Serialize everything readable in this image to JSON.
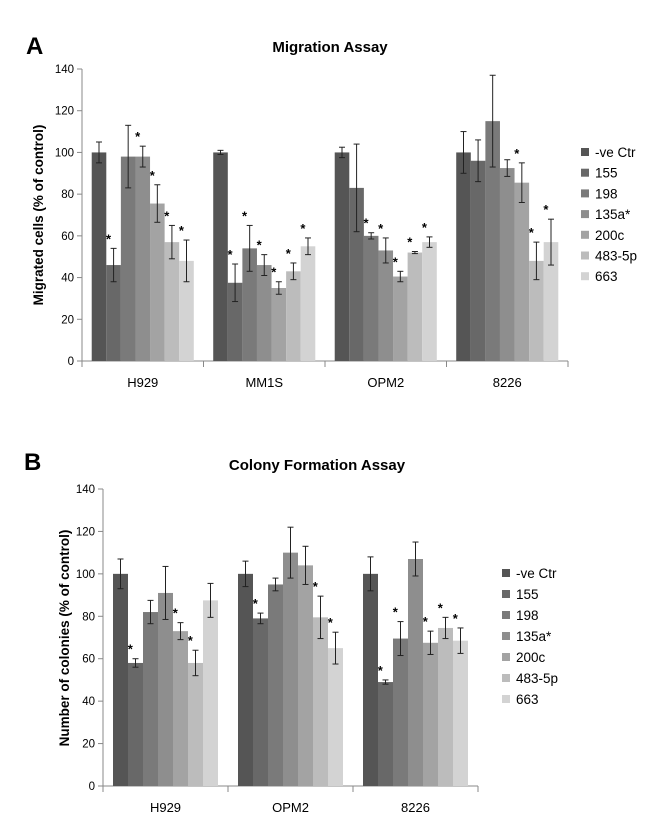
{
  "series_colors": [
    "#555555",
    "#686868",
    "#7a7a7a",
    "#8e8e8e",
    "#a3a3a3",
    "#bcbcbc",
    "#d3d3d3"
  ],
  "chart_data": [
    {
      "panel": "A",
      "type": "bar",
      "title": "Migration Assay",
      "xlabel": "",
      "ylabel": "Migrated cells (% of control)",
      "ylim": [
        0,
        140
      ],
      "yticks": [
        0,
        20,
        40,
        60,
        80,
        100,
        120,
        140
      ],
      "grid": false,
      "legend_position": "right",
      "categories": [
        "H929",
        "MM1S",
        "OPM2",
        "8226"
      ],
      "series": [
        {
          "name": "-ve Ctr",
          "values": [
            100,
            100,
            100,
            100
          ],
          "errors": [
            5,
            1,
            2.5,
            10
          ],
          "sig": [
            false,
            false,
            false,
            false
          ]
        },
        {
          "name": "155",
          "values": [
            46,
            37.5,
            83,
            96
          ],
          "errors": [
            8,
            9,
            21,
            10
          ],
          "sig": [
            true,
            true,
            false,
            false
          ]
        },
        {
          "name": "198",
          "values": [
            98,
            54,
            60,
            115
          ],
          "errors": [
            15,
            11,
            1.5,
            22
          ],
          "sig": [
            false,
            true,
            true,
            false
          ]
        },
        {
          "name": "135a*",
          "values": [
            98,
            46,
            53,
            92.5
          ],
          "errors": [
            5,
            5,
            6,
            4
          ],
          "sig": [
            true,
            true,
            true,
            false
          ]
        },
        {
          "name": "200c",
          "values": [
            75.5,
            35,
            40.5,
            85.5
          ],
          "errors": [
            9,
            3,
            2.5,
            9.5
          ],
          "sig": [
            true,
            true,
            true,
            true
          ]
        },
        {
          "name": "483-5p",
          "values": [
            57,
            43,
            52,
            48
          ],
          "errors": [
            8,
            4,
            0.5,
            9
          ],
          "sig": [
            true,
            true,
            true,
            true
          ]
        },
        {
          "name": "663",
          "values": [
            48,
            55,
            57,
            57
          ],
          "errors": [
            10,
            4,
            2.5,
            11
          ],
          "sig": [
            true,
            true,
            true,
            true
          ]
        }
      ]
    },
    {
      "panel": "B",
      "type": "bar",
      "title": "Colony Formation Assay",
      "xlabel": "",
      "ylabel": "Number of colonies (% of control)",
      "ylim": [
        0,
        140
      ],
      "yticks": [
        0,
        20,
        40,
        60,
        80,
        100,
        120,
        140
      ],
      "grid": false,
      "legend_position": "right",
      "categories": [
        "H929",
        "OPM2",
        "8226"
      ],
      "series": [
        {
          "name": "-ve Ctr",
          "values": [
            100,
            100,
            100
          ],
          "errors": [
            7,
            6,
            8
          ],
          "sig": [
            false,
            false,
            false
          ]
        },
        {
          "name": "155",
          "values": [
            58,
            79,
            49
          ],
          "errors": [
            2,
            2.5,
            1
          ],
          "sig": [
            true,
            true,
            true
          ]
        },
        {
          "name": "198",
          "values": [
            82,
            95,
            69.5
          ],
          "errors": [
            5.5,
            3,
            8
          ],
          "sig": [
            false,
            false,
            true
          ]
        },
        {
          "name": "135a*",
          "values": [
            91,
            110,
            107
          ],
          "errors": [
            12.5,
            12,
            8
          ],
          "sig": [
            false,
            false,
            false
          ]
        },
        {
          "name": "200c",
          "values": [
            73,
            104,
            67.5
          ],
          "errors": [
            4,
            9,
            5.5
          ],
          "sig": [
            true,
            false,
            true
          ]
        },
        {
          "name": "483-5p",
          "values": [
            58,
            79.5,
            74.5
          ],
          "errors": [
            6,
            10,
            5
          ],
          "sig": [
            true,
            true,
            true
          ]
        },
        {
          "name": "663",
          "values": [
            87.5,
            65,
            68.5
          ],
          "errors": [
            8,
            7.5,
            6
          ],
          "sig": [
            false,
            true,
            true
          ]
        }
      ]
    }
  ]
}
